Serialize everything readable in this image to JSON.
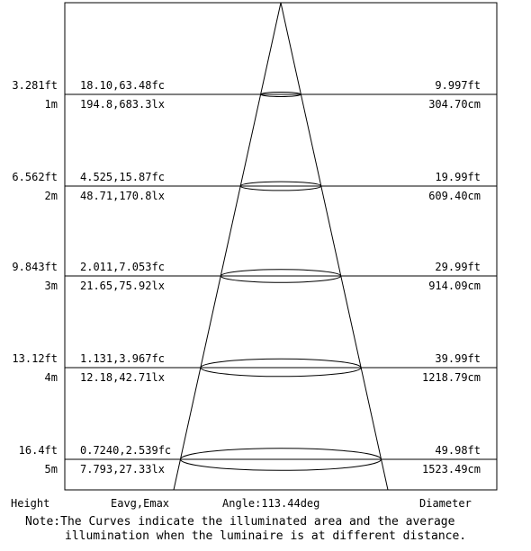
{
  "diagram": {
    "title": "",
    "footer": {
      "height_label": "Height",
      "eavg_label": "Eavg,Emax",
      "angle_label": "Angle:113.44deg",
      "diameter_label": "Diameter"
    },
    "rows": [
      {
        "height_ft": "3.281ft",
        "height_m": "1m",
        "fc": "18.10,63.48fc",
        "lx": "194.8,683.3lx",
        "diam_ft": "9.997ft",
        "diam_cm": "304.70cm"
      },
      {
        "height_ft": "6.562ft",
        "height_m": "2m",
        "fc": "4.525,15.87fc",
        "lx": "48.71,170.8lx",
        "diam_ft": "19.99ft",
        "diam_cm": "609.40cm"
      },
      {
        "height_ft": "9.843ft",
        "height_m": "3m",
        "fc": "2.011,7.053fc",
        "lx": "21.65,75.92lx",
        "diam_ft": "29.99ft",
        "diam_cm": "914.09cm"
      },
      {
        "height_ft": "13.12ft",
        "height_m": "4m",
        "fc": "1.131,3.967fc",
        "lx": "12.18,42.71lx",
        "diam_ft": "39.99ft",
        "diam_cm": "1218.79cm"
      },
      {
        "height_ft": "16.4ft",
        "height_m": "5m",
        "fc": "0.7240,2.539fc",
        "lx": "7.793,27.33lx",
        "diam_ft": "49.98ft",
        "diam_cm": "1523.49cm"
      }
    ],
    "note_line1": "Note:The Curves indicate the illuminated area and the average",
    "note_line2": "illumination when the luminaire is at different distance."
  }
}
